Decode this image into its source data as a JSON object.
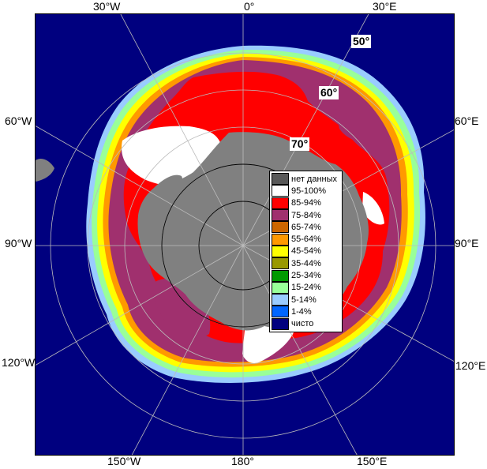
{
  "map": {
    "longitude_labels": {
      "top_left": "30°W",
      "top_center": "0°",
      "top_right": "30°E",
      "left_upper": "60°W",
      "right_upper": "60°E",
      "left_middle": "90°W",
      "right_middle": "90°E",
      "left_lower": "120°W",
      "right_lower": "120°E",
      "bottom_left": "150°W",
      "bottom_center": "180°",
      "bottom_right": "150°E"
    },
    "latitude_labels": {
      "lat50": "50°",
      "lat60": "60°",
      "lat70": "70°"
    }
  },
  "legend": {
    "items": [
      {
        "label": "нет данных",
        "color": "#595959"
      },
      {
        "label": "95-100%",
        "color": "#ffffff"
      },
      {
        "label": "85-94%",
        "color": "#ff0000"
      },
      {
        "label": "75-84%",
        "color": "#a0306e"
      },
      {
        "label": "65-74%",
        "color": "#cc6600"
      },
      {
        "label": "55-64%",
        "color": "#ff9900"
      },
      {
        "label": "45-54%",
        "color": "#ffff00"
      },
      {
        "label": "35-44%",
        "color": "#999900"
      },
      {
        "label": "25-34%",
        "color": "#009900"
      },
      {
        "label": "15-24%",
        "color": "#99ff99"
      },
      {
        "label": "5-14%",
        "color": "#99ccff"
      },
      {
        "label": "1-4%",
        "color": "#0066ff"
      },
      {
        "label": "чисто",
        "color": "#00007f"
      }
    ]
  },
  "colors": {
    "ocean": "#00007f",
    "land": "#808080",
    "grid": "#bbbbbb",
    "pole_grid": "#000000"
  }
}
